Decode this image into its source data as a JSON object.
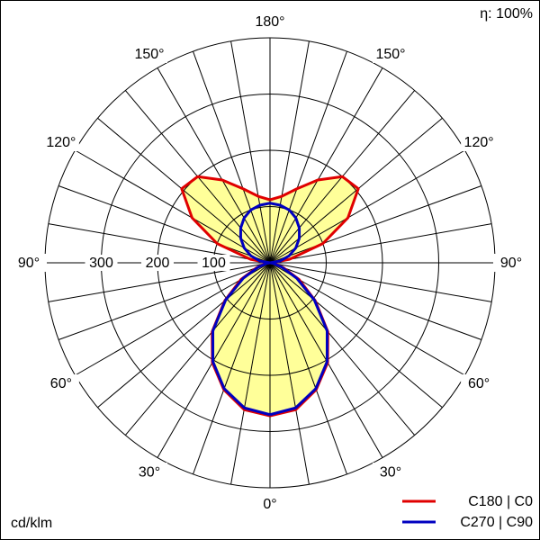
{
  "chart_data": {
    "type": "polar",
    "efficiency": "η: 100%",
    "unit": "cd/klm",
    "x": [
      0,
      10,
      20,
      30,
      40,
      50,
      60,
      70,
      80,
      90,
      100,
      110,
      120,
      130,
      140,
      150,
      160,
      170,
      180
    ],
    "series": [
      {
        "name": "C180 | C0",
        "color": "#e00000",
        "values": [
          272,
          265,
          240,
          205,
          160,
          105,
          60,
          25,
          8,
          2,
          35,
          100,
          160,
          205,
          200,
          170,
          140,
          120,
          112
        ]
      },
      {
        "name": "C270 | C90",
        "color": "#0000c0",
        "values": [
          270,
          262,
          238,
          203,
          158,
          103,
          55,
          22,
          6,
          0,
          18,
          36,
          53,
          68,
          81,
          92,
          100,
          104,
          106
        ]
      }
    ],
    "fill_color": "#ffff99",
    "rlim": [
      0,
      400
    ],
    "rticks": [
      100,
      200,
      300
    ],
    "angle_grid": 10,
    "angle_ticks": [
      {
        "value": 0,
        "label": "0°"
      },
      {
        "value": 30,
        "label": "30°"
      },
      {
        "value": 60,
        "label": "60°"
      },
      {
        "value": 90,
        "label": "90°"
      },
      {
        "value": 120,
        "label": "120°"
      },
      {
        "value": 150,
        "label": "150°"
      },
      {
        "value": 180,
        "label": "180°"
      }
    ],
    "legend": "bottom-right"
  }
}
